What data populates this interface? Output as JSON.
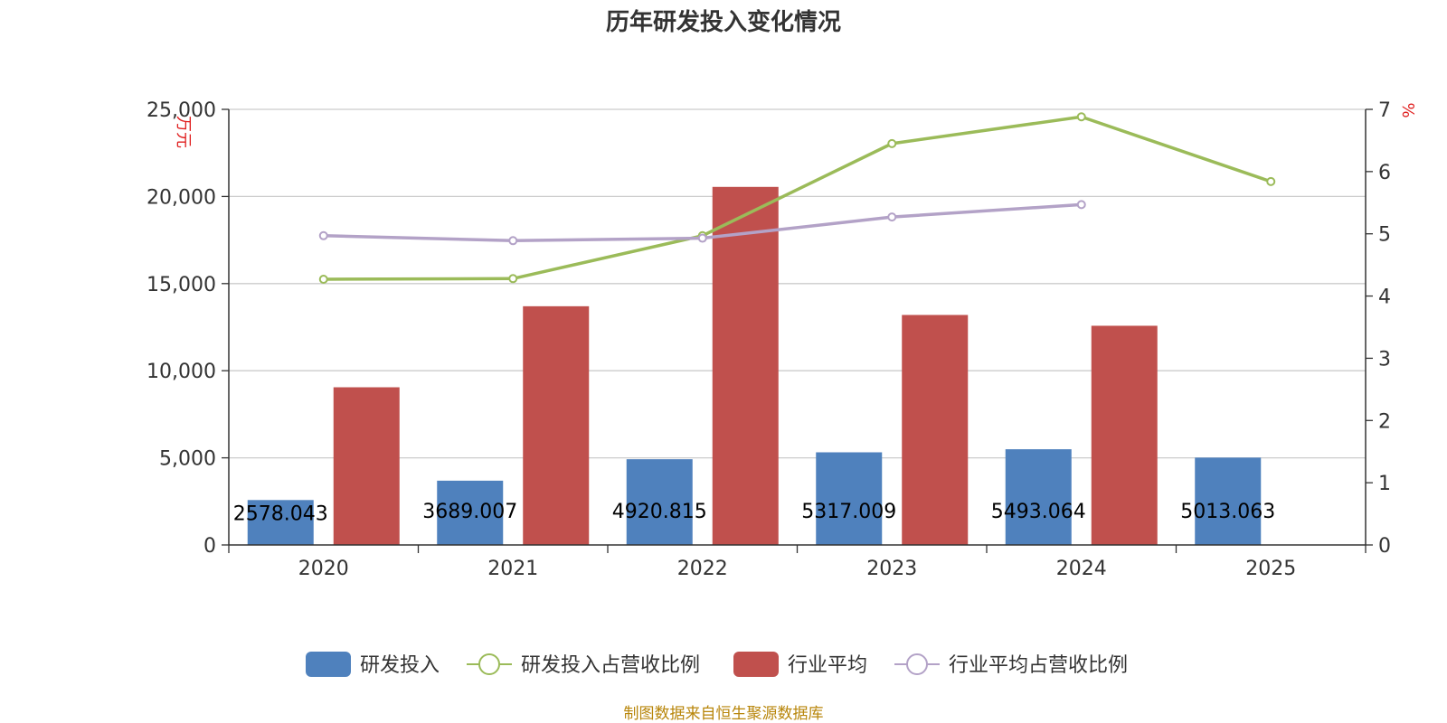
{
  "chart_data": {
    "type": "bar",
    "title": "历年研发投入变化情况",
    "categories": [
      "2020",
      "2021",
      "2022",
      "2023",
      "2024",
      "2025"
    ],
    "y_left_unit": "万元",
    "y_right_unit": "%",
    "y_left_ticks": [
      "0",
      "5,000",
      "10,000",
      "15,000",
      "20,000",
      "25,000"
    ],
    "y_right_ticks": [
      "0",
      "1",
      "2",
      "3",
      "4",
      "5",
      "6",
      "7"
    ],
    "y_left_range": [
      0,
      25000
    ],
    "y_right_range": [
      0,
      7
    ],
    "grid": true,
    "legend_position": "bottom",
    "series": [
      {
        "name": "研发投入",
        "kind": "bar",
        "axis": "left",
        "color": "#4f81bd",
        "values": [
          2578.043,
          3689.007,
          4920.815,
          5317.009,
          5493.064,
          5013.063
        ],
        "labels": [
          "2578.043",
          "3689.007",
          "4920.815",
          "5317.009",
          "5493.064",
          "5013.063"
        ]
      },
      {
        "name": "研发投入占营收比例",
        "kind": "line",
        "axis": "right",
        "color": "#9bbb59",
        "values": [
          4.27,
          4.28,
          4.97,
          6.45,
          6.88,
          5.84
        ]
      },
      {
        "name": "行业平均",
        "kind": "bar",
        "axis": "left",
        "color": "#c0504d",
        "values": [
          9050,
          13700,
          20550,
          13200,
          12580,
          null
        ]
      },
      {
        "name": "行业平均占营收比例",
        "kind": "line",
        "axis": "right",
        "color": "#b3a2c7",
        "values": [
          4.97,
          4.89,
          4.93,
          5.27,
          5.47,
          null
        ]
      }
    ]
  },
  "source": "制图数据来自恒生聚源数据库"
}
